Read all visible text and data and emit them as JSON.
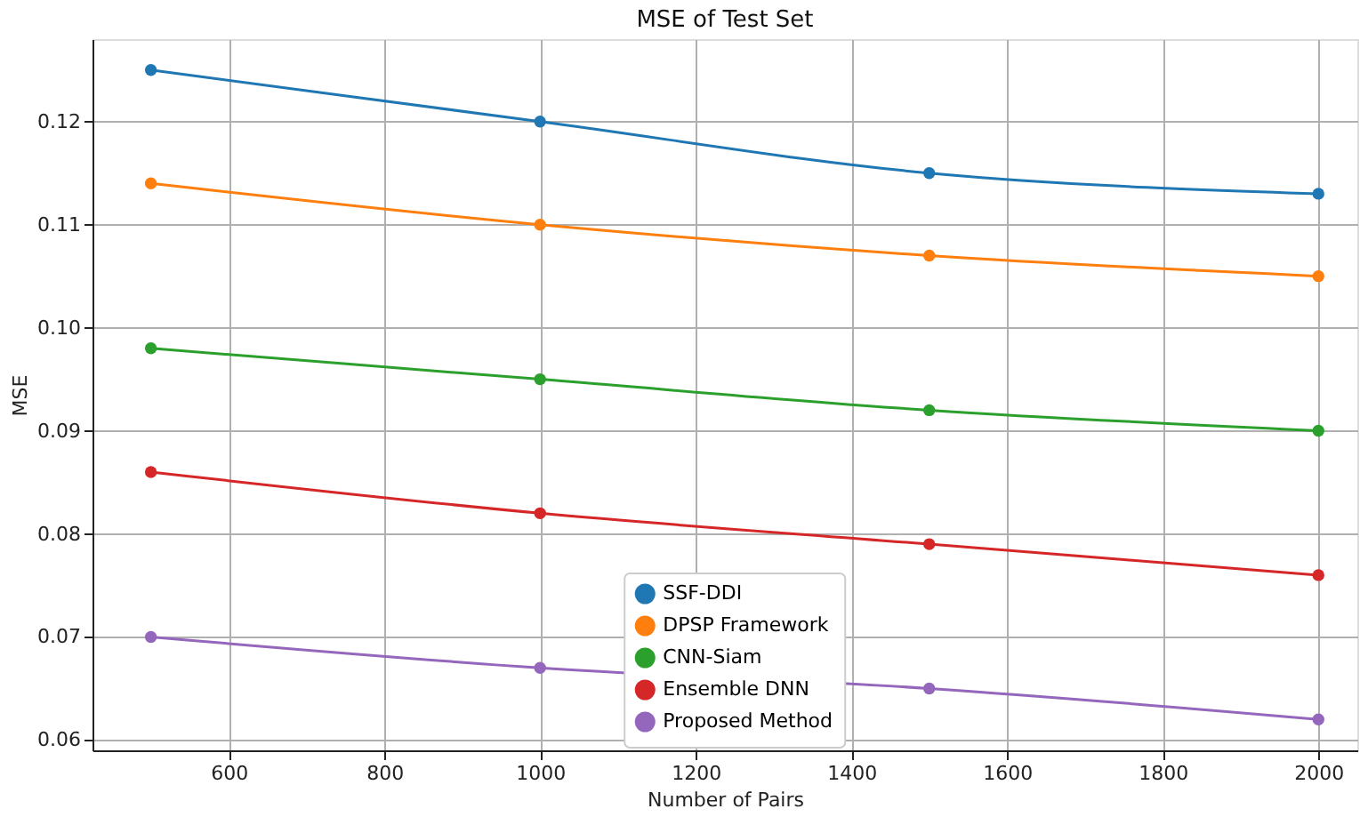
{
  "chart_data": {
    "type": "line",
    "title": "MSE of Test Set",
    "xlabel": "Number of Pairs",
    "ylabel": "MSE",
    "x": [
      500,
      1000,
      1500,
      2000
    ],
    "series": [
      {
        "name": "SSF-DDI",
        "color": "#1f77b4",
        "values": [
          0.125,
          0.12,
          0.115,
          0.113
        ]
      },
      {
        "name": "DPSP Framework",
        "color": "#ff7f0e",
        "values": [
          0.114,
          0.11,
          0.107,
          0.105
        ]
      },
      {
        "name": "CNN-Siam",
        "color": "#2ca02c",
        "values": [
          0.098,
          0.095,
          0.092,
          0.09
        ]
      },
      {
        "name": "Ensemble DNN",
        "color": "#d62728",
        "values": [
          0.086,
          0.082,
          0.079,
          0.076
        ]
      },
      {
        "name": "Proposed Method",
        "color": "#9467bd",
        "values": [
          0.07,
          0.067,
          0.065,
          0.062
        ]
      }
    ],
    "xlim": [
      425,
      2050
    ],
    "xticks": [
      600,
      800,
      1000,
      1200,
      1400,
      1600,
      1800,
      2000
    ],
    "ylim": [
      0.059,
      0.128
    ],
    "yticks": [
      0.06,
      0.07,
      0.08,
      0.09,
      {
        "value": 0.1,
        "label": "0.10"
      },
      0.11,
      0.12
    ],
    "grid": true,
    "legend": "bottom",
    "marker": "circle",
    "line_style": "solid"
  }
}
